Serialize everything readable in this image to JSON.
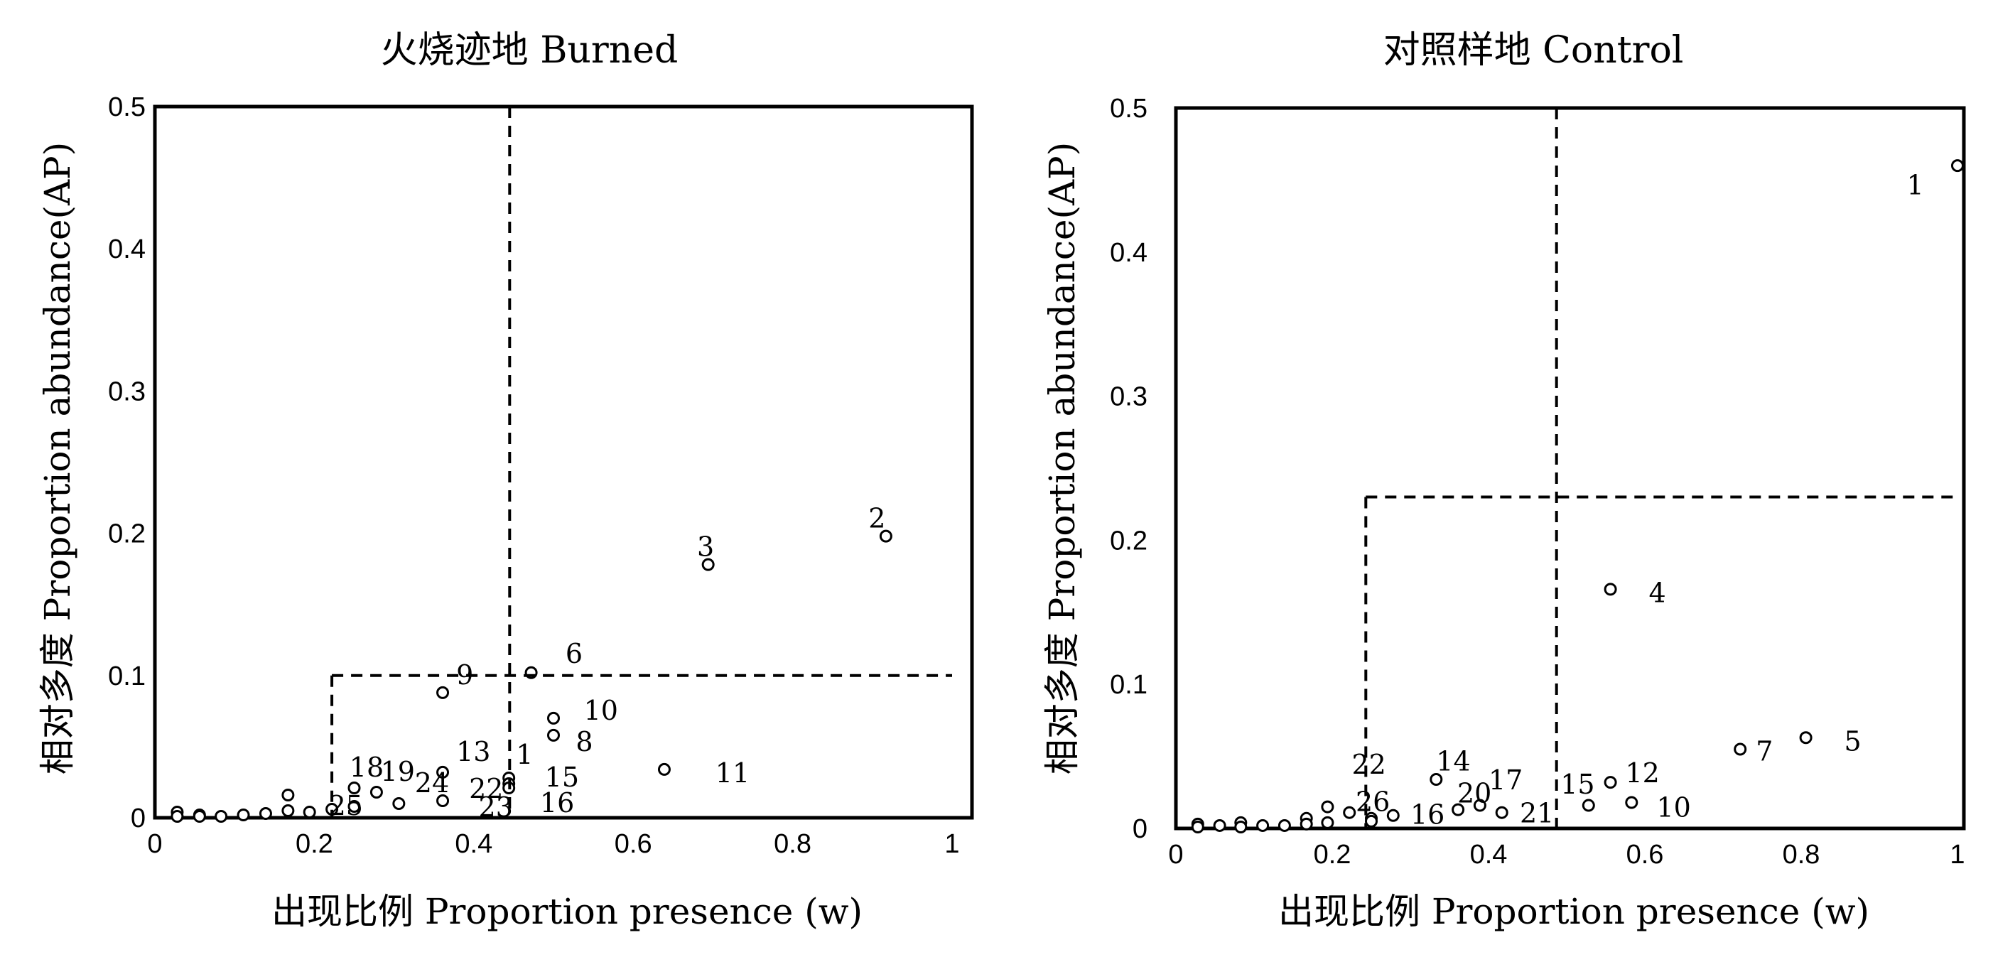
{
  "chart_data": [
    {
      "type": "scatter",
      "title": "火烧迹地 Burned",
      "xlabel": "出现比例 Proportion presence (w)",
      "ylabel": "相对多度 Proportion abundance(AP)",
      "xlim": [
        0,
        1
      ],
      "ylim": [
        0,
        0.5
      ],
      "x_ticks": [
        "0",
        "0.2",
        "0.4",
        "0.6",
        "0.8",
        "1"
      ],
      "y_ticks": [
        "0",
        "0.1",
        "0.2",
        "0.3",
        "0.4",
        "0.5"
      ],
      "grid": false,
      "thresholds": {
        "vertical": [
          0.445,
          0.222
        ],
        "horizontal": [
          0.1
        ]
      },
      "points": [
        {
          "x": 0.917,
          "y": 0.198
        },
        {
          "x": 0.694,
          "y": 0.178
        },
        {
          "x": 0.472,
          "y": 0.102
        },
        {
          "x": 0.361,
          "y": 0.088
        },
        {
          "x": 0.5,
          "y": 0.07
        },
        {
          "x": 0.5,
          "y": 0.058
        },
        {
          "x": 0.639,
          "y": 0.034
        },
        {
          "x": 0.444,
          "y": 0.028
        },
        {
          "x": 0.444,
          "y": 0.024
        },
        {
          "x": 0.444,
          "y": 0.021
        },
        {
          "x": 0.361,
          "y": 0.032
        },
        {
          "x": 0.361,
          "y": 0.012
        },
        {
          "x": 0.306,
          "y": 0.01
        },
        {
          "x": 0.278,
          "y": 0.018
        },
        {
          "x": 0.25,
          "y": 0.021
        },
        {
          "x": 0.25,
          "y": 0.008
        },
        {
          "x": 0.222,
          "y": 0.006
        },
        {
          "x": 0.194,
          "y": 0.004
        },
        {
          "x": 0.167,
          "y": 0.016
        },
        {
          "x": 0.167,
          "y": 0.005
        },
        {
          "x": 0.139,
          "y": 0.003
        },
        {
          "x": 0.111,
          "y": 0.002
        },
        {
          "x": 0.083,
          "y": 0.001
        },
        {
          "x": 0.056,
          "y": 0.002
        },
        {
          "x": 0.056,
          "y": 0.001
        },
        {
          "x": 0.028,
          "y": 0.004
        },
        {
          "x": 0.028,
          "y": 0.001
        }
      ],
      "labels": [
        {
          "text": "2",
          "x": 0.895,
          "y": 0.21
        },
        {
          "text": "3",
          "x": 0.68,
          "y": 0.19
        },
        {
          "text": "6",
          "x": 0.515,
          "y": 0.115
        },
        {
          "text": "9",
          "x": 0.378,
          "y": 0.1
        },
        {
          "text": "10",
          "x": 0.538,
          "y": 0.075
        },
        {
          "text": "8",
          "x": 0.528,
          "y": 0.053
        },
        {
          "text": "11",
          "x": 0.703,
          "y": 0.031
        },
        {
          "text": "1",
          "x": 0.453,
          "y": 0.044
        },
        {
          "text": "15",
          "x": 0.489,
          "y": 0.028
        },
        {
          "text": "16",
          "x": 0.483,
          "y": 0.01
        },
        {
          "text": "13",
          "x": 0.378,
          "y": 0.046
        },
        {
          "text": "22",
          "x": 0.394,
          "y": 0.02
        },
        {
          "text": "23",
          "x": 0.406,
          "y": 0.007
        },
        {
          "text": "24",
          "x": 0.326,
          "y": 0.024
        },
        {
          "text": "18",
          "x": 0.244,
          "y": 0.035
        },
        {
          "text": "19",
          "x": 0.283,
          "y": 0.032
        },
        {
          "text": "25",
          "x": 0.218,
          "y": 0.008
        }
      ]
    },
    {
      "type": "scatter",
      "title": "对照样地 Control",
      "xlabel": "出现比例 Proportion presence (w)",
      "ylabel": "相对多度 Proportion abundance(AP)",
      "xlim": [
        0,
        1
      ],
      "ylim": [
        0,
        0.5
      ],
      "x_ticks": [
        "0",
        "0.2",
        "0.4",
        "0.6",
        "0.8",
        "1"
      ],
      "y_ticks": [
        "0",
        "0.1",
        "0.2",
        "0.3",
        "0.4",
        "0.5"
      ],
      "grid": false,
      "thresholds": {
        "vertical": [
          0.487,
          0.243
        ],
        "horizontal": [
          0.23
        ]
      },
      "points": [
        {
          "x": 1.0,
          "y": 0.46
        },
        {
          "x": 0.556,
          "y": 0.166
        },
        {
          "x": 0.806,
          "y": 0.063
        },
        {
          "x": 0.722,
          "y": 0.055
        },
        {
          "x": 0.556,
          "y": 0.032
        },
        {
          "x": 0.583,
          "y": 0.018
        },
        {
          "x": 0.528,
          "y": 0.016
        },
        {
          "x": 0.333,
          "y": 0.034
        },
        {
          "x": 0.389,
          "y": 0.016
        },
        {
          "x": 0.417,
          "y": 0.011
        },
        {
          "x": 0.361,
          "y": 0.013
        },
        {
          "x": 0.278,
          "y": 0.009
        },
        {
          "x": 0.25,
          "y": 0.007
        },
        {
          "x": 0.25,
          "y": 0.005
        },
        {
          "x": 0.222,
          "y": 0.011
        },
        {
          "x": 0.194,
          "y": 0.015
        },
        {
          "x": 0.194,
          "y": 0.004
        },
        {
          "x": 0.167,
          "y": 0.007
        },
        {
          "x": 0.167,
          "y": 0.003
        },
        {
          "x": 0.139,
          "y": 0.002
        },
        {
          "x": 0.111,
          "y": 0.002
        },
        {
          "x": 0.083,
          "y": 0.004
        },
        {
          "x": 0.083,
          "y": 0.001
        },
        {
          "x": 0.056,
          "y": 0.002
        },
        {
          "x": 0.028,
          "y": 0.003
        },
        {
          "x": 0.028,
          "y": 0.001
        }
      ],
      "labels": [
        {
          "text": "1",
          "x": 0.935,
          "y": 0.446
        },
        {
          "text": "4",
          "x": 0.605,
          "y": 0.163
        },
        {
          "text": "5",
          "x": 0.855,
          "y": 0.06
        },
        {
          "text": "7",
          "x": 0.742,
          "y": 0.053
        },
        {
          "text": "12",
          "x": 0.575,
          "y": 0.038
        },
        {
          "text": "10",
          "x": 0.615,
          "y": 0.014
        },
        {
          "text": "15",
          "x": 0.492,
          "y": 0.03
        },
        {
          "text": "14",
          "x": 0.333,
          "y": 0.046
        },
        {
          "text": "17",
          "x": 0.4,
          "y": 0.033
        },
        {
          "text": "20",
          "x": 0.36,
          "y": 0.024
        },
        {
          "text": "21",
          "x": 0.44,
          "y": 0.01
        },
        {
          "text": "16",
          "x": 0.3,
          "y": 0.009
        },
        {
          "text": "22",
          "x": 0.225,
          "y": 0.044
        },
        {
          "text": "26",
          "x": 0.23,
          "y": 0.018
        }
      ]
    }
  ]
}
